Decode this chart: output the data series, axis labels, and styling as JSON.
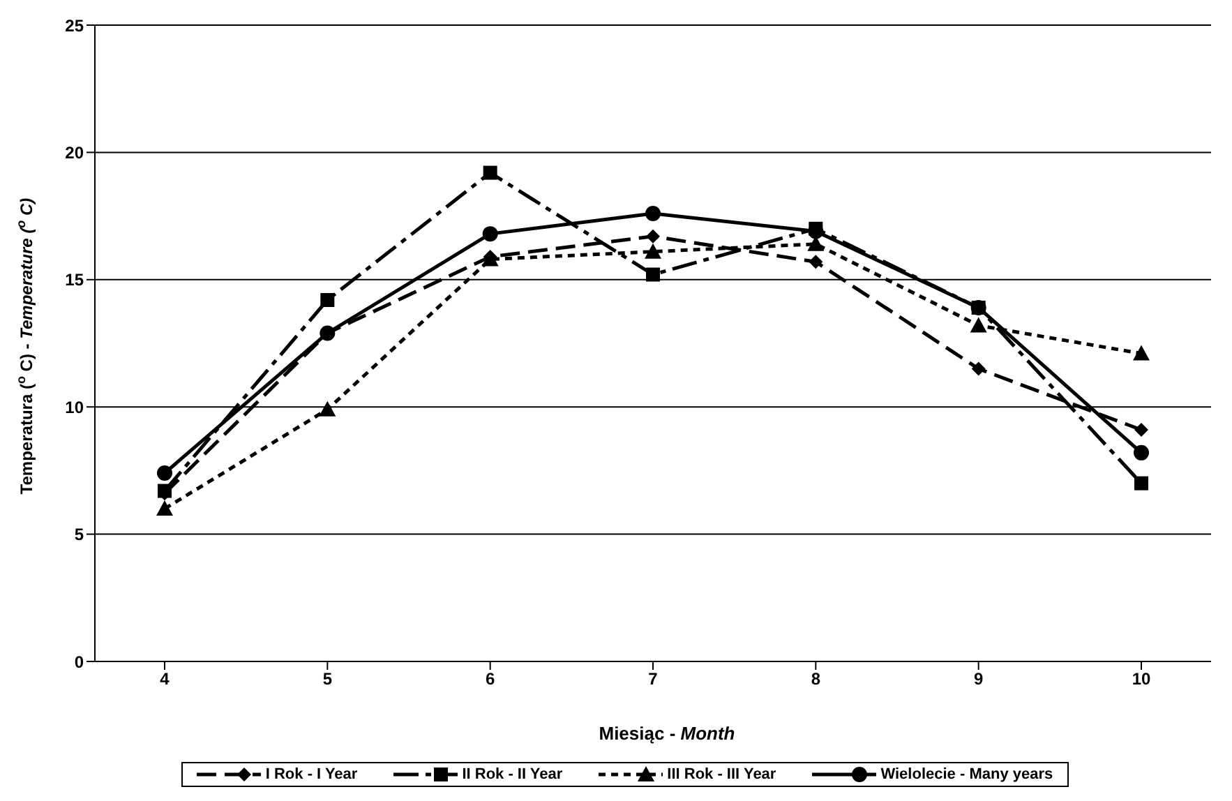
{
  "chart_data": {
    "type": "line",
    "xlabel": "Miesiąc - Month",
    "ylabel": "Temperatura ($^{o}$ C) - Temperature ($^{o}$ C)",
    "categories": [
      "4",
      "5",
      "6",
      "7",
      "8",
      "9",
      "10"
    ],
    "ylim": [
      0,
      25
    ],
    "yticks": [
      0,
      5,
      10,
      15,
      20,
      25
    ],
    "grid": "y",
    "legend": "bottom",
    "series": [
      {
        "name": "I Rok - I Year",
        "color": "#000000",
        "marker": "diamond",
        "line_style": "dashed",
        "values": [
          6.6,
          12.9,
          15.9,
          16.7,
          15.7,
          11.5,
          9.1
        ]
      },
      {
        "name": "II Rok - II Year",
        "color": "#000000",
        "marker": "square",
        "line_style": "dashed",
        "values": [
          6.7,
          14.2,
          19.2,
          15.2,
          17.0,
          13.9,
          7.0
        ]
      },
      {
        "name": "III Rok - III Year",
        "color": "#000000",
        "marker": "triangle",
        "line_style": "dotted",
        "values": [
          6.0,
          9.9,
          15.8,
          16.1,
          16.4,
          13.2,
          12.1
        ]
      },
      {
        "name": "Wielolecie - Many years",
        "color": "#000000",
        "marker": "circle",
        "line_style": "solid",
        "values": [
          7.4,
          12.9,
          16.8,
          17.6,
          16.9,
          13.9,
          8.2
        ]
      }
    ]
  }
}
